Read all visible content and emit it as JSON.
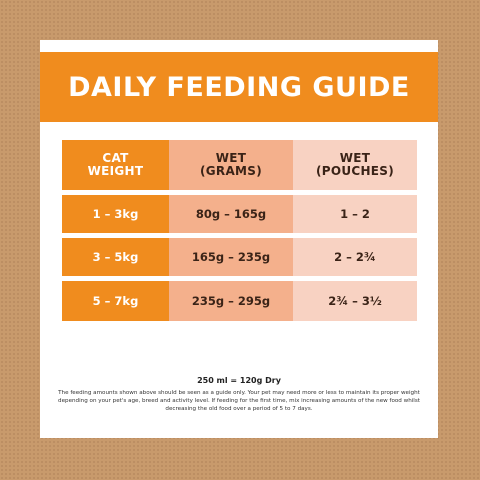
{
  "title": "DAILY FEEDING GUIDE",
  "table": {
    "headers": {
      "cat": [
        "CAT",
        "WEIGHT"
      ],
      "wet_grams": [
        "WET",
        "(GRAMS)"
      ],
      "wet_pouches": [
        "WET",
        "(POUCHES)"
      ]
    },
    "rows": [
      {
        "weight": "1 – 3kg",
        "grams": "80g – 165g",
        "pouches": "1 – 2"
      },
      {
        "weight": "3 – 5kg",
        "grams": "165g – 235g",
        "pouches": "2 – 2¾"
      },
      {
        "weight": "5 – 7kg",
        "grams": "235g – 295g",
        "pouches": "2¾ – 3½"
      }
    ]
  },
  "conversion": "250 ml = 120g Dry",
  "note": "The feeding amounts shown above should be seen as a guide only. Your pet may need more or less to maintain its proper weight depending on your pet's age, breed and activity level. If feeding for the first time, mix increasing amounts of the new food whilst decreasing the old food over a period of 5 to 7 days.",
  "colors": {
    "background": "#c89a6c",
    "accent_orange": "#f08c1e",
    "wet_grams_fill": "#f4b08c",
    "wet_pouches_fill": "#f8d2c2"
  }
}
